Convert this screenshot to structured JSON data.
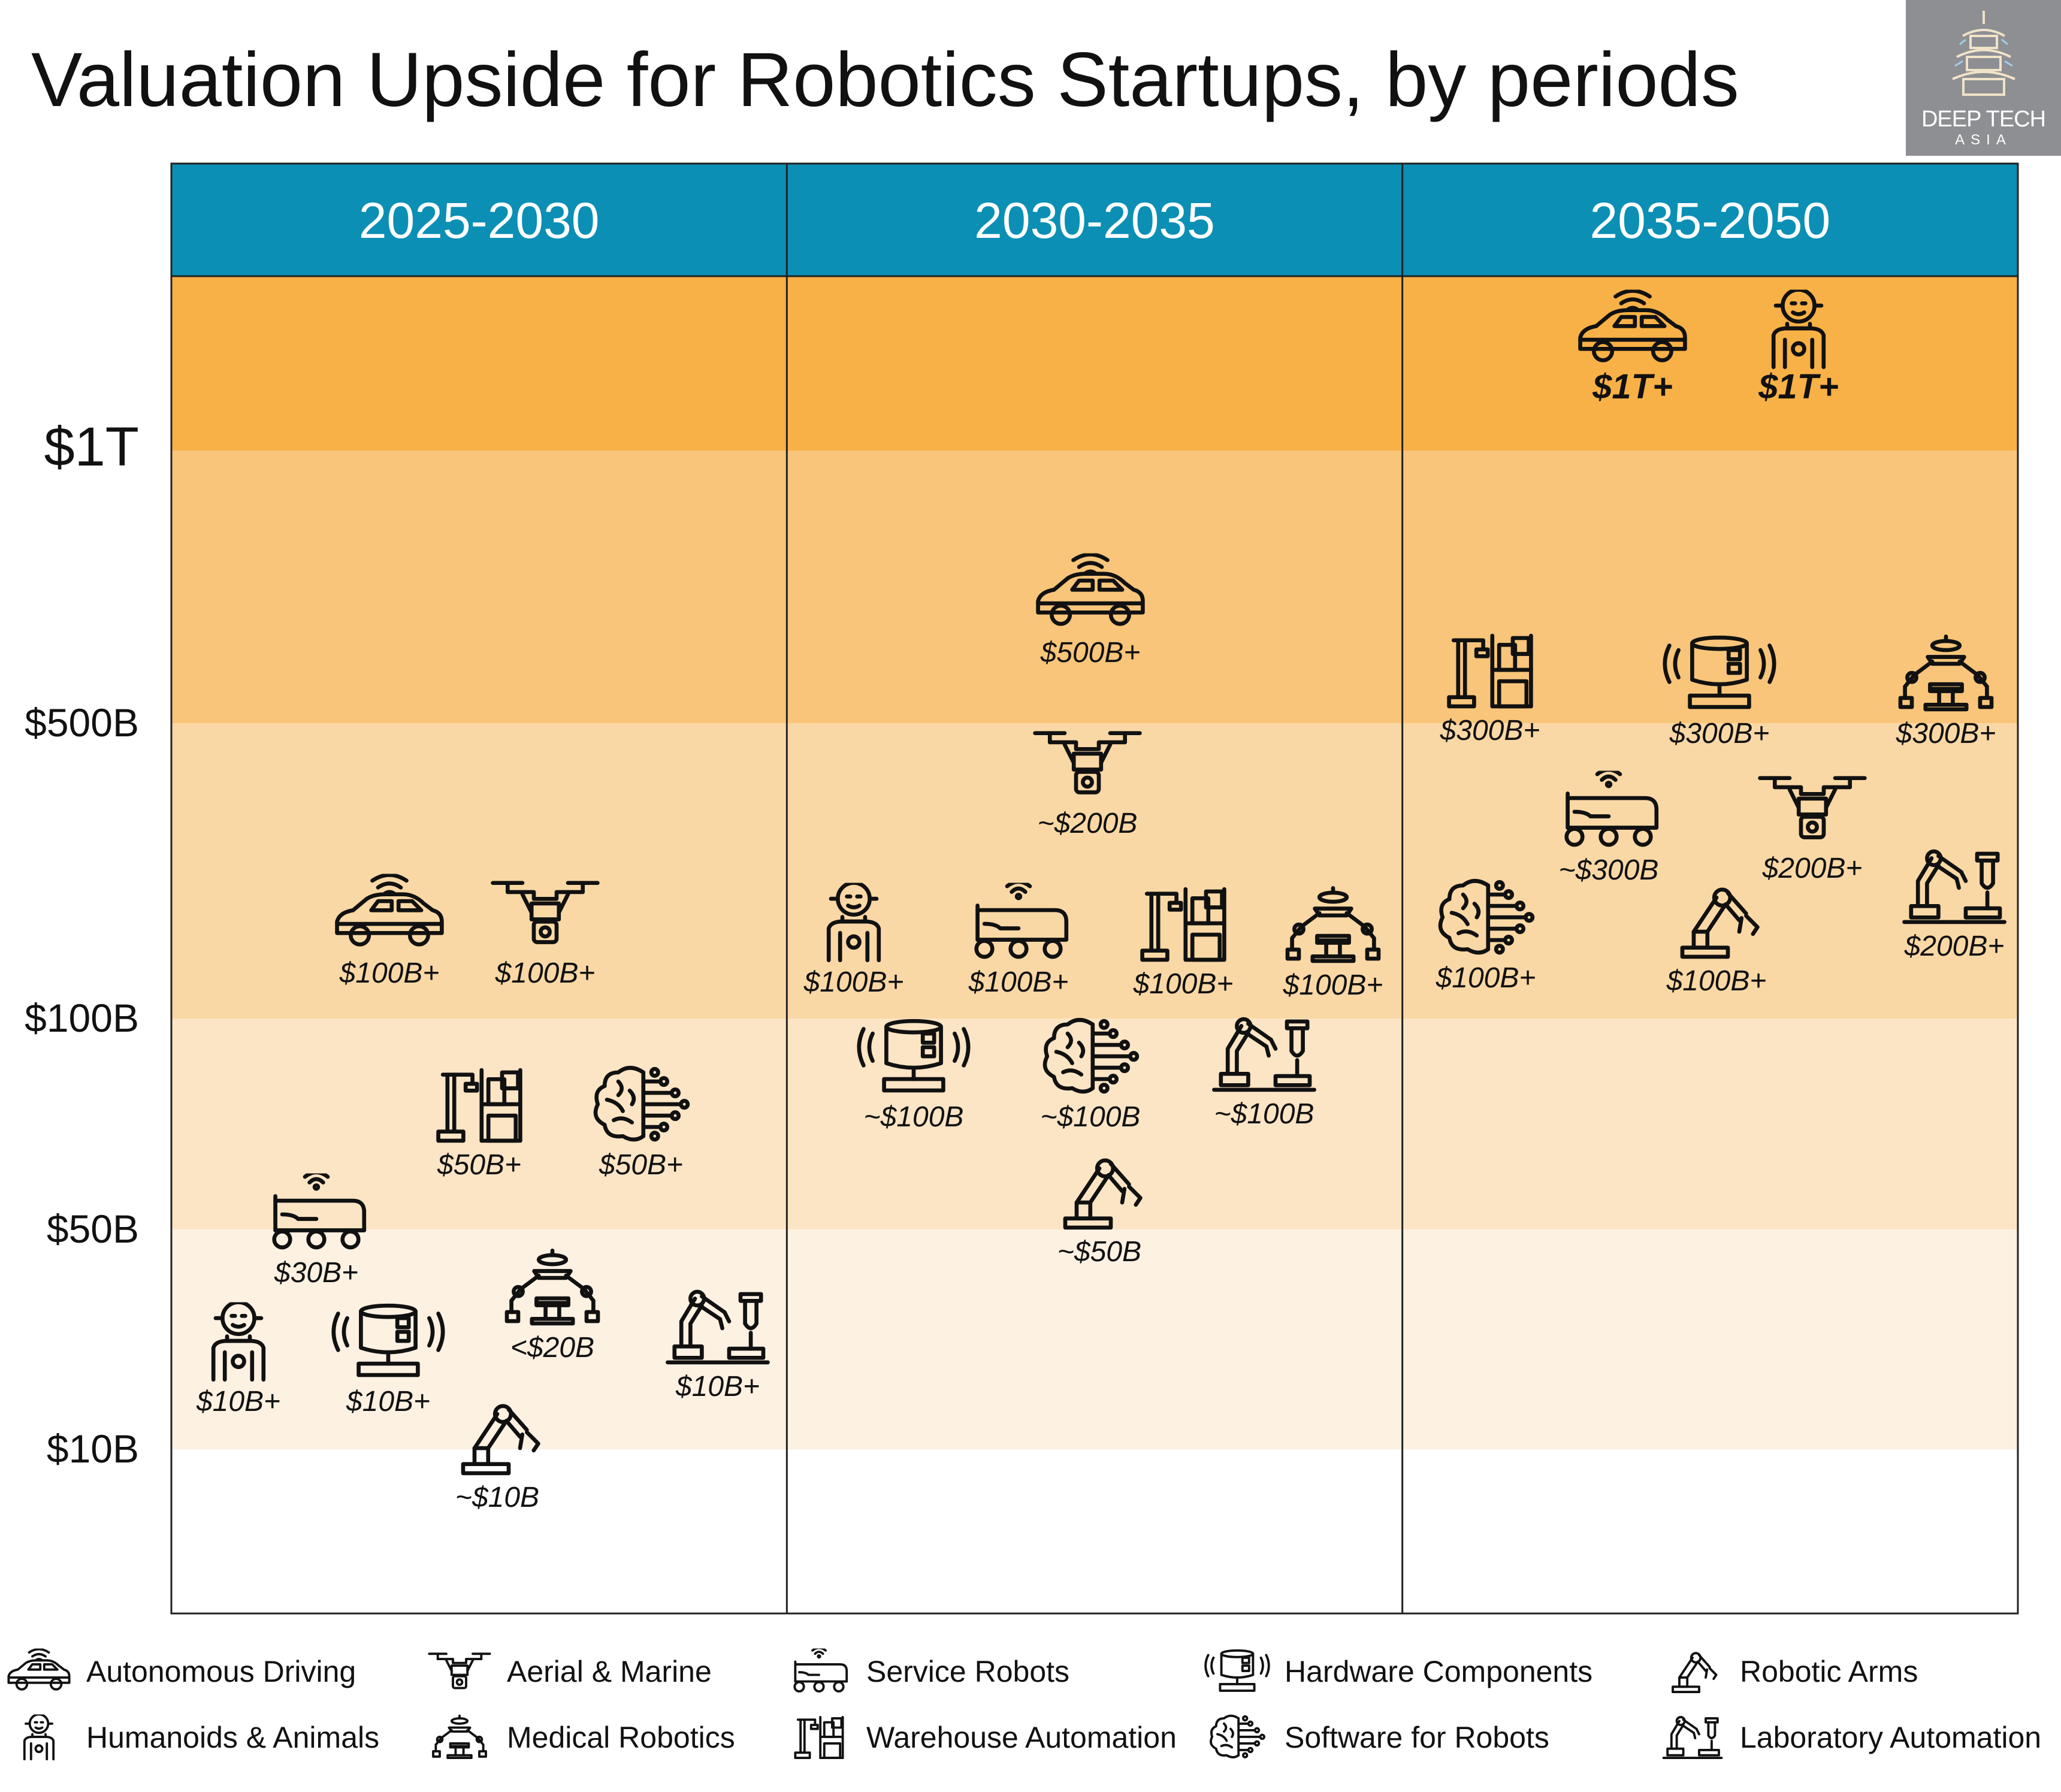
{
  "title": "Valuation Upside for Robotics Startups, by periods",
  "logo": {
    "name": "DEEP TECH",
    "sub": "ASIA"
  },
  "colors": {
    "header": "#0b8fb5",
    "band_top": "#f8b146",
    "band_1T_500B": "#f8c57a",
    "band_500B_100B": "#fad8a5",
    "band_100B_50B": "#fce5c5",
    "band_50B_10B": "#fdf1e2"
  },
  "chart_data": {
    "type": "scatter",
    "title": "Valuation Upside for Robotics Startups, by periods",
    "periods": [
      "2025-2030",
      "2030-2035",
      "2035-2050"
    ],
    "y_ticks": [
      "$1T",
      "$500B",
      "$100B",
      "$50B",
      "$10B"
    ],
    "y_scale": "ordinal valuation bands",
    "points": [
      {
        "period": "2025-2030",
        "category": "Autonomous Driving",
        "label": "$100B+"
      },
      {
        "period": "2025-2030",
        "category": "Aerial & Marine",
        "label": "$100B+"
      },
      {
        "period": "2025-2030",
        "category": "Warehouse Automation",
        "label": "$50B+"
      },
      {
        "period": "2025-2030",
        "category": "Software for Robots",
        "label": "$50B+"
      },
      {
        "period": "2025-2030",
        "category": "Service Robots",
        "label": "$30B+"
      },
      {
        "period": "2025-2030",
        "category": "Medical Robotics",
        "label": "<$20B"
      },
      {
        "period": "2025-2030",
        "category": "Laboratory Automation",
        "label": "$10B+"
      },
      {
        "period": "2025-2030",
        "category": "Humanoids & Animals",
        "label": "$10B+"
      },
      {
        "period": "2025-2030",
        "category": "Hardware Components",
        "label": "$10B+"
      },
      {
        "period": "2025-2030",
        "category": "Robotic Arms",
        "label": "~$10B"
      },
      {
        "period": "2030-2035",
        "category": "Autonomous Driving",
        "label": "$500B+"
      },
      {
        "period": "2030-2035",
        "category": "Aerial & Marine",
        "label": "~$200B"
      },
      {
        "period": "2030-2035",
        "category": "Humanoids & Animals",
        "label": "$100B+"
      },
      {
        "period": "2030-2035",
        "category": "Service Robots",
        "label": "$100B+"
      },
      {
        "period": "2030-2035",
        "category": "Warehouse Automation",
        "label": "$100B+"
      },
      {
        "period": "2030-2035",
        "category": "Medical Robotics",
        "label": "$100B+"
      },
      {
        "period": "2030-2035",
        "category": "Hardware Components",
        "label": "~$100B"
      },
      {
        "period": "2030-2035",
        "category": "Software for Robots",
        "label": "~$100B"
      },
      {
        "period": "2030-2035",
        "category": "Laboratory Automation",
        "label": "~$100B"
      },
      {
        "period": "2030-2035",
        "category": "Robotic Arms",
        "label": "~$50B"
      },
      {
        "period": "2035-2050",
        "category": "Autonomous Driving",
        "label": "$1T+"
      },
      {
        "period": "2035-2050",
        "category": "Humanoids & Animals",
        "label": "$1T+"
      },
      {
        "period": "2035-2050",
        "category": "Warehouse Automation",
        "label": "$300B+"
      },
      {
        "period": "2035-2050",
        "category": "Hardware Components",
        "label": "$300B+"
      },
      {
        "period": "2035-2050",
        "category": "Medical Robotics",
        "label": "$300B+"
      },
      {
        "period": "2035-2050",
        "category": "Service Robots",
        "label": "~$300B"
      },
      {
        "period": "2035-2050",
        "category": "Aerial & Marine",
        "label": "$200B+"
      },
      {
        "period": "2035-2050",
        "category": "Laboratory Automation",
        "label": "$200B+"
      },
      {
        "period": "2035-2050",
        "category": "Software for Robots",
        "label": "$100B+"
      },
      {
        "period": "2035-2050",
        "category": "Robotic Arms",
        "label": "$100B+"
      }
    ]
  },
  "legend": [
    {
      "icon": "car-icon",
      "label": "Autonomous Driving"
    },
    {
      "icon": "drone-icon",
      "label": "Aerial & Marine"
    },
    {
      "icon": "service-robot-icon",
      "label": "Service Robots"
    },
    {
      "icon": "hardware-icon",
      "label": "Hardware Components"
    },
    {
      "icon": "robotic-arm-icon",
      "label": "Robotic Arms"
    },
    {
      "icon": "humanoid-icon",
      "label": "Humanoids & Animals"
    },
    {
      "icon": "medical-robot-icon",
      "label": "Medical Robotics"
    },
    {
      "icon": "warehouse-icon",
      "label": "Warehouse Automation"
    },
    {
      "icon": "brain-icon",
      "label": "Software for Robots"
    },
    {
      "icon": "lab-arm-icon",
      "label": "Laboratory Automation"
    }
  ]
}
